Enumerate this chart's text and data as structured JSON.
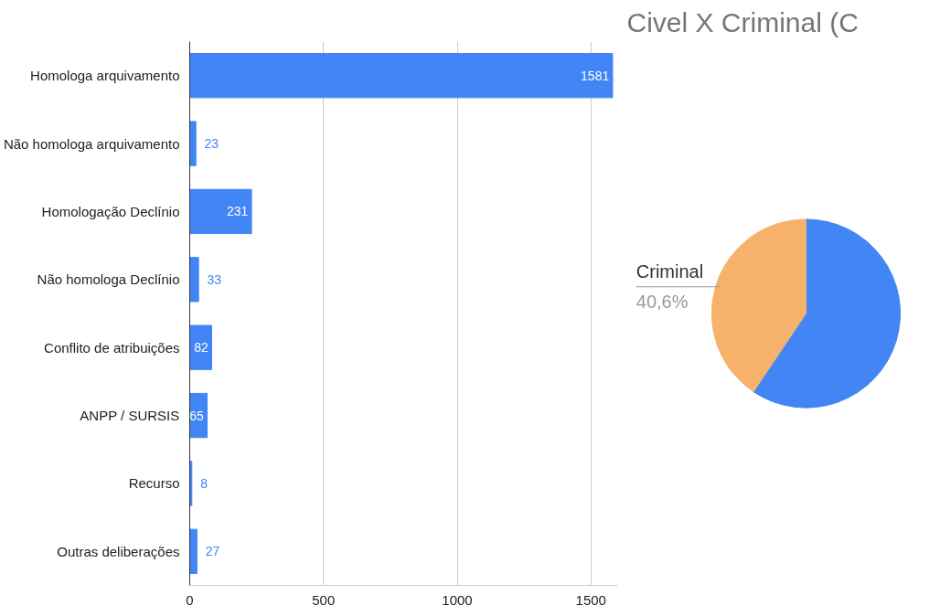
{
  "chart_data": [
    {
      "type": "bar",
      "orientation": "horizontal",
      "categories": [
        "Homologa arquivamento",
        "Não homologa arquivamento",
        "Homologação Declínio",
        "Não homologa Declínio",
        "Conflito de atribuições",
        "ANPP / SURSIS",
        "Recurso",
        "Outras deliberações"
      ],
      "values": [
        1581,
        23,
        231,
        33,
        82,
        65,
        8,
        27
      ],
      "color": "#4285f4",
      "xlim": [
        0,
        1600
      ],
      "xticks": [
        0,
        500,
        1000,
        1500
      ],
      "grid": "x",
      "data_labels": true
    },
    {
      "type": "pie",
      "title": "Civel X Criminal (C",
      "categories": [
        null,
        "Criminal"
      ],
      "values": [
        59.4,
        40.6
      ],
      "colors": [
        "#4285f4",
        "#f6b26b"
      ],
      "value_labels": [
        null,
        "40,6%"
      ]
    }
  ]
}
